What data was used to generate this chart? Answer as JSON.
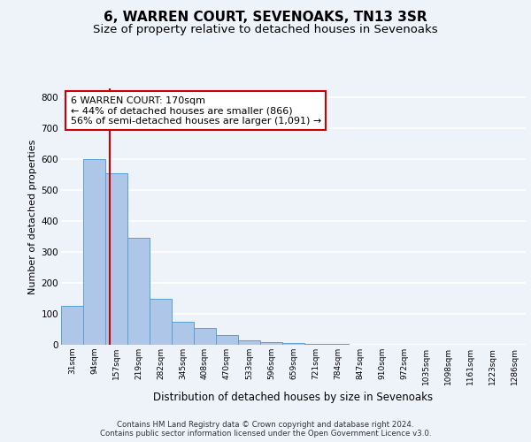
{
  "title": "6, WARREN COURT, SEVENOAKS, TN13 3SR",
  "subtitle": "Size of property relative to detached houses in Sevenoaks",
  "xlabel": "Distribution of detached houses by size in Sevenoaks",
  "ylabel": "Number of detached properties",
  "bin_labels": [
    "31sqm",
    "94sqm",
    "157sqm",
    "219sqm",
    "282sqm",
    "345sqm",
    "408sqm",
    "470sqm",
    "533sqm",
    "596sqm",
    "659sqm",
    "721sqm",
    "784sqm",
    "847sqm",
    "910sqm",
    "972sqm",
    "1035sqm",
    "1098sqm",
    "1161sqm",
    "1223sqm",
    "1286sqm"
  ],
  "bar_values": [
    125,
    600,
    555,
    347,
    150,
    75,
    53,
    32,
    15,
    8,
    5,
    3,
    2,
    1,
    1,
    0,
    0,
    0,
    0,
    0,
    0
  ],
  "bar_color": "#aec6e8",
  "bar_edge_color": "#5a9fd4",
  "annotation_line1": "6 WARREN COURT: 170sqm",
  "annotation_line2": "← 44% of detached houses are smaller (866)",
  "annotation_line3": "56% of semi-detached houses are larger (1,091) →",
  "annotation_box_color": "#ffffff",
  "annotation_box_edge": "#cc0000",
  "vline_color": "#cc0000",
  "ylim": [
    0,
    830
  ],
  "yticks": [
    0,
    100,
    200,
    300,
    400,
    500,
    600,
    700,
    800
  ],
  "footer": "Contains HM Land Registry data © Crown copyright and database right 2024.\nContains public sector information licensed under the Open Government Licence v3.0.",
  "bg_color": "#eef2f9",
  "grid_color": "#ffffff",
  "title_fontsize": 11,
  "subtitle_fontsize": 9.5,
  "annotation_fontsize": 8,
  "ylabel_fontsize": 8,
  "xlabel_fontsize": 8.5
}
